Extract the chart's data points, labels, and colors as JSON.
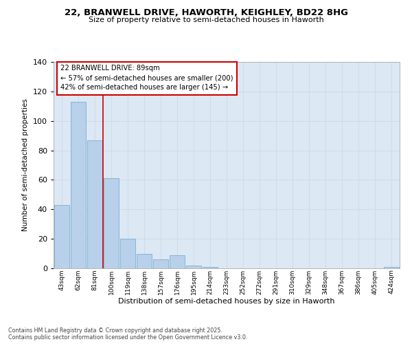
{
  "title": "22, BRANWELL DRIVE, HAWORTH, KEIGHLEY, BD22 8HG",
  "subtitle": "Size of property relative to semi-detached houses in Haworth",
  "xlabel": "Distribution of semi-detached houses by size in Haworth",
  "ylabel": "Number of semi-detached properties",
  "bin_labels": [
    "43sqm",
    "62sqm",
    "81sqm",
    "100sqm",
    "119sqm",
    "138sqm",
    "157sqm",
    "176sqm",
    "195sqm",
    "214sqm",
    "233sqm",
    "252sqm",
    "272sqm",
    "291sqm",
    "310sqm",
    "329sqm",
    "348sqm",
    "367sqm",
    "386sqm",
    "405sqm",
    "424sqm"
  ],
  "bar_values": [
    43,
    113,
    87,
    61,
    20,
    10,
    6,
    9,
    2,
    1,
    0,
    0,
    0,
    0,
    0,
    0,
    0,
    0,
    0,
    0,
    1
  ],
  "bar_color": "#b8d0ea",
  "bar_edge_color": "#7aaed0",
  "vline_x": 2.5,
  "annotation_title": "22 BRANWELL DRIVE: 89sqm",
  "annotation_line1": "← 57% of semi-detached houses are smaller (200)",
  "annotation_line2": "42% of semi-detached houses are larger (145) →",
  "annotation_box_color": "#ffffff",
  "annotation_box_edge": "#cc0000",
  "vline_color": "#cc0000",
  "ylim": [
    0,
    140
  ],
  "yticks": [
    0,
    20,
    40,
    60,
    80,
    100,
    120,
    140
  ],
  "footer1": "Contains HM Land Registry data © Crown copyright and database right 2025.",
  "footer2": "Contains public sector information licensed under the Open Government Licence v3.0.",
  "grid_color": "#d0dce8",
  "background_color": "#dde8f5",
  "fig_bg_color": "#ffffff"
}
